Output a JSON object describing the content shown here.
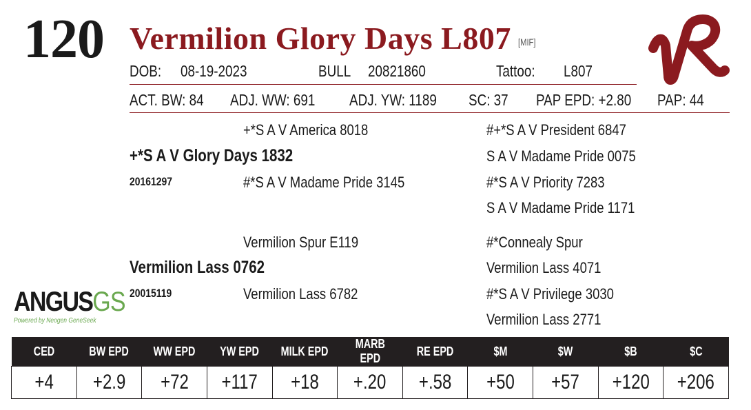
{
  "lot_number": "120",
  "animal_name": "Vermilion Glory Days L807",
  "tag": "[MIF]",
  "info": {
    "dob_label": "DOB:",
    "dob": "08-19-2023",
    "sex": "BULL",
    "reg_number": "20821860",
    "tattoo_label": "Tattoo:",
    "tattoo": "L807"
  },
  "stats": {
    "act_bw": "ACT. BW: 84",
    "adj_ww": "ADJ. WW: 691",
    "adj_yw": "ADJ. YW: 1189",
    "sc": "SC: 37",
    "pap_epd": "PAP EPD: +2.80",
    "pap": "PAP: 44"
  },
  "pedigree": {
    "sire": "+*S A V Glory Days 1832",
    "sire_reg": "20161297",
    "sire_sire": "+*S A V America 8018",
    "sire_dam": "#*S A V Madame Pride 3145",
    "ss_sire": "#+*S A V President 6847",
    "ss_dam": "S A V Madame Pride 0075",
    "sd_sire": "#*S A V Priority 7283",
    "sd_dam": "S A V Madame Pride 1171",
    "dam": "Vermilion Lass 0762",
    "dam_reg": "20015119",
    "dam_sire": "Vermilion Spur E119",
    "dam_dam": "Vermilion Lass 6782",
    "ds_sire": "#*Connealy Spur",
    "ds_dam": "Vermilion Lass 4071",
    "dd_sire": "#*S A V Privilege 3030",
    "dd_dam": "Vermilion Lass 2771"
  },
  "logos": {
    "breeder_logo": "vr-brand-logo",
    "angus_word": "ANGUS",
    "angus_gs": "GS",
    "angus_tagline": "Powered by Neogen GeneSeek"
  },
  "epds": {
    "headers": [
      "CED",
      "BW EPD",
      "WW EPD",
      "YW EPD",
      "MILK EPD",
      "MARB EPD",
      "RE EPD",
      "$M",
      "$W",
      "$B",
      "$C"
    ],
    "values": [
      "+4",
      "+2.9",
      "+72",
      "+117",
      "+18",
      "+.20",
      "+.58",
      "+50",
      "+57",
      "+120",
      "+206"
    ]
  },
  "colors": {
    "accent": "#8b1a1f",
    "header_bg": "#231f20",
    "angus_green": "#6aa84f"
  }
}
